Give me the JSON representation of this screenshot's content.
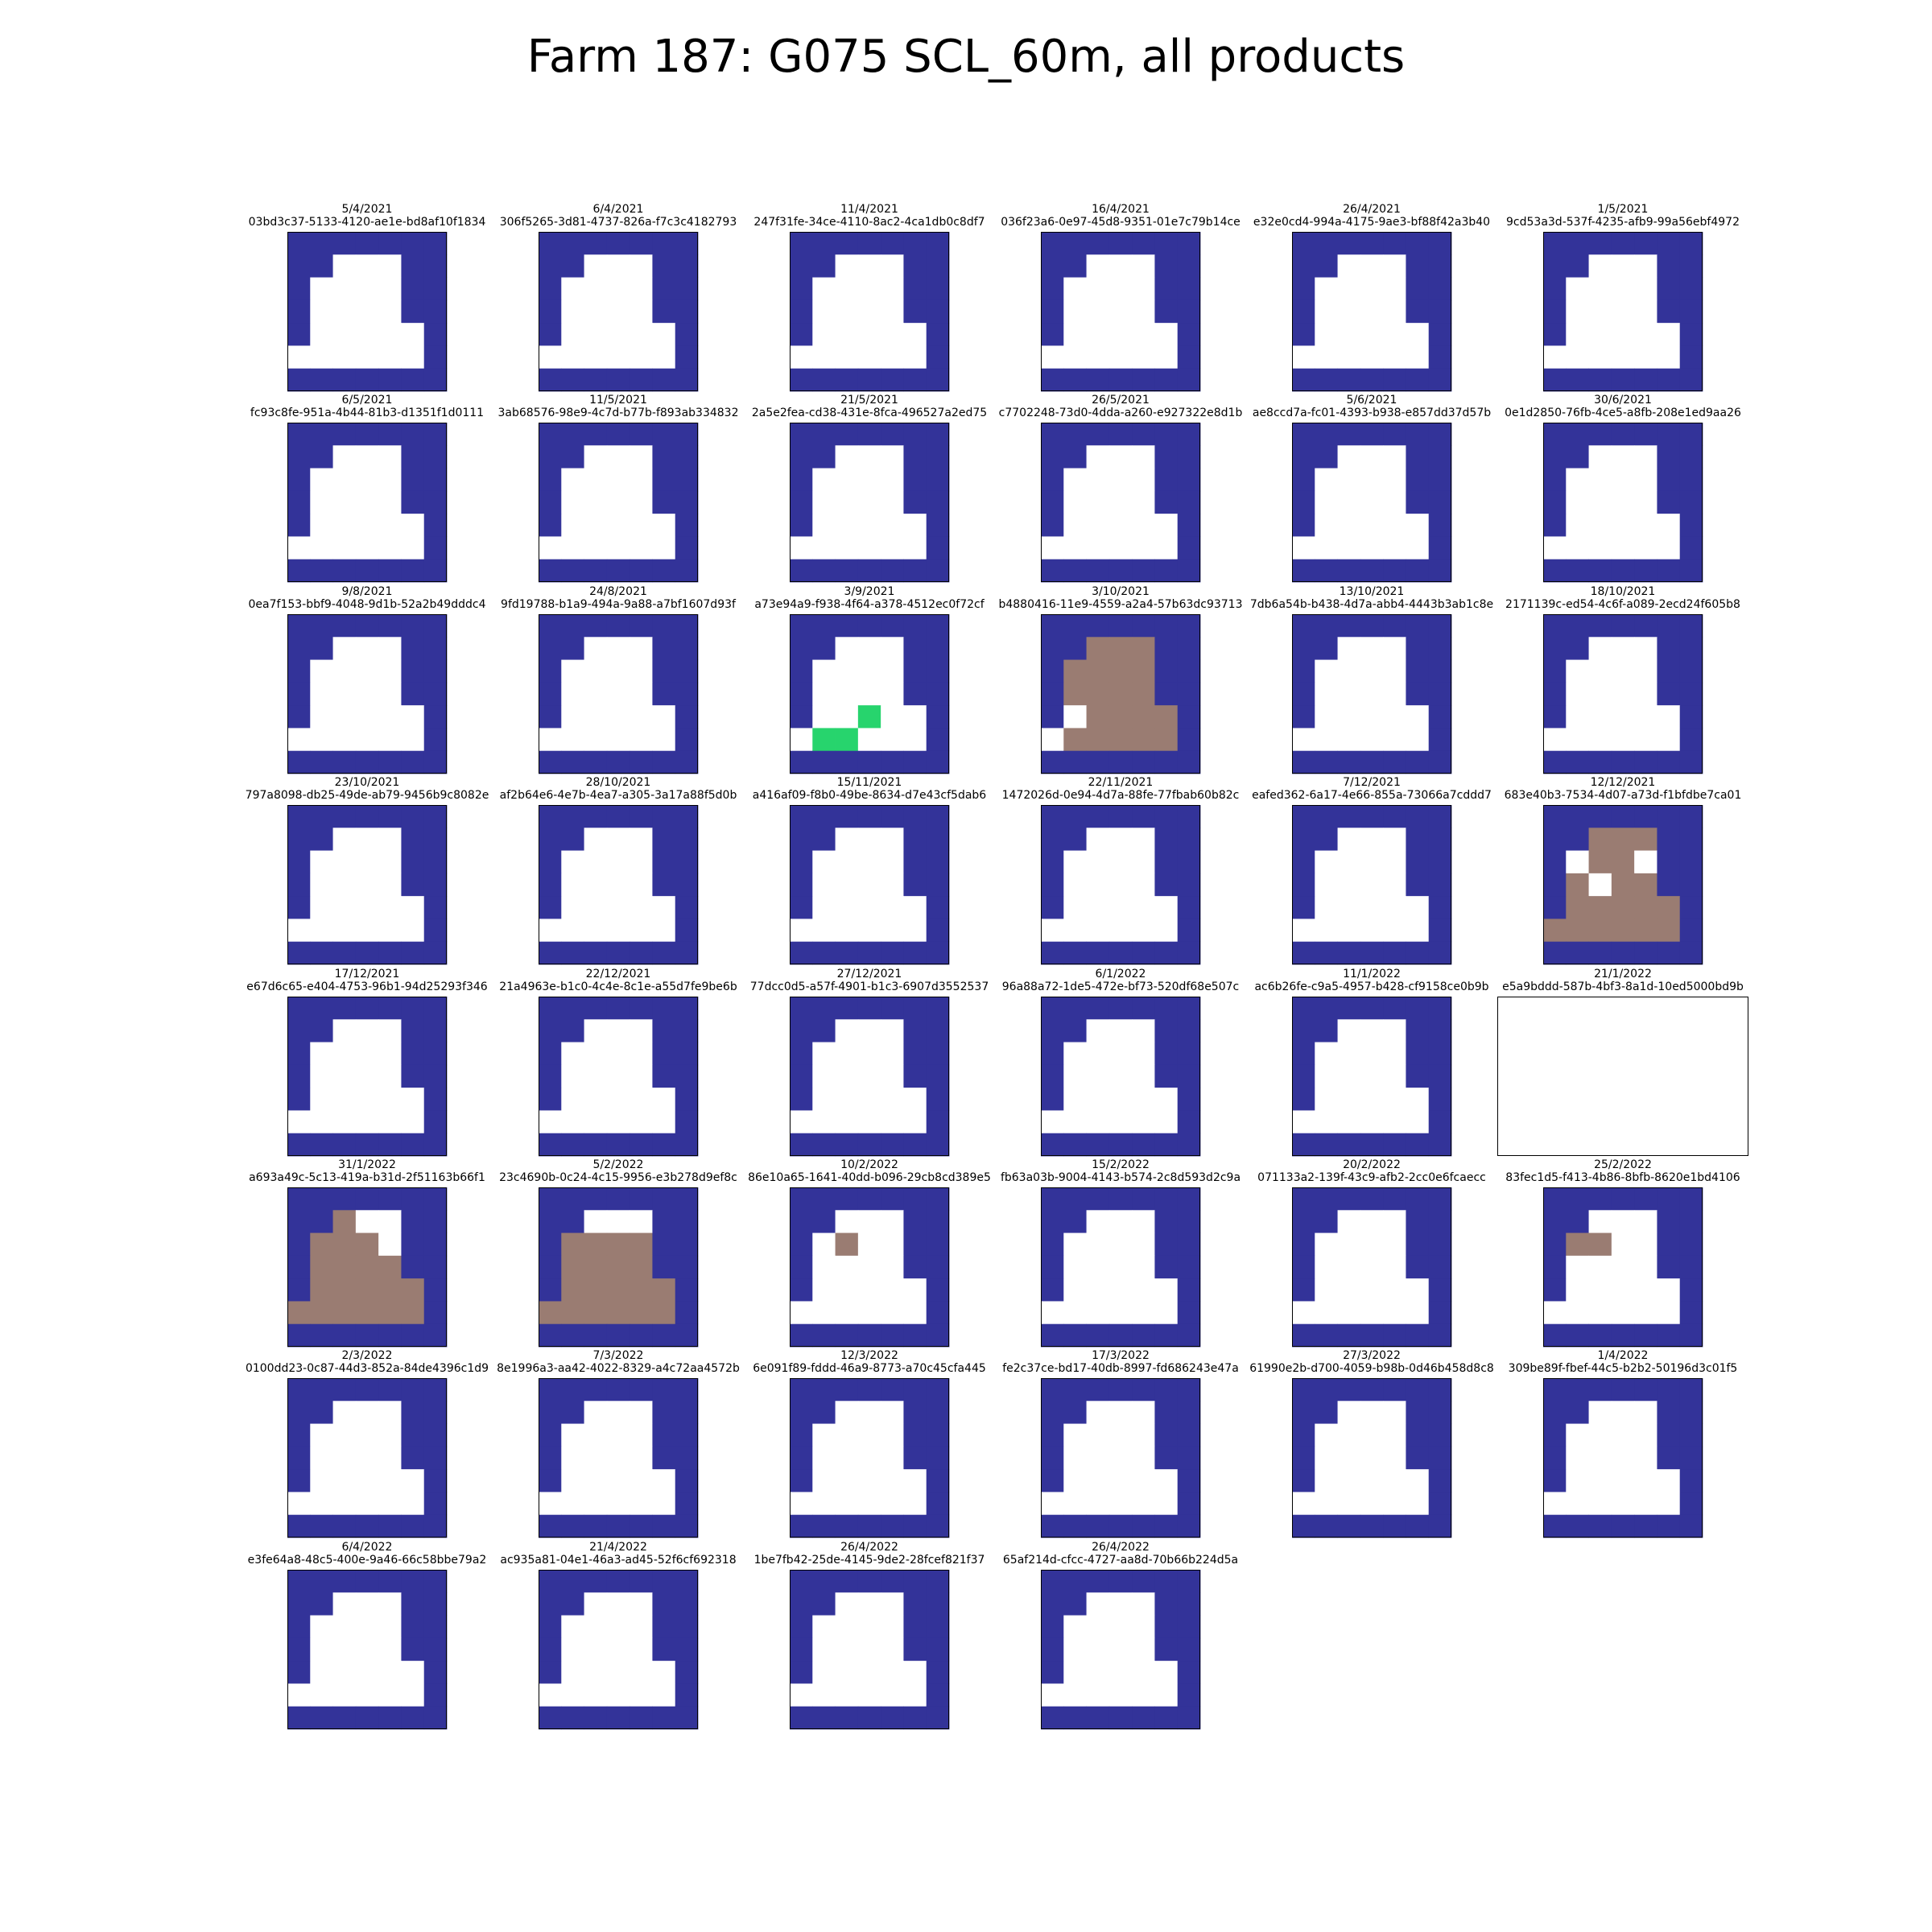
{
  "title": "Farm 187: G075 SCL_60m, all products",
  "colors": {
    "water": "#333399",
    "no_data": "#ffffff",
    "bare_soil": "#9a7c72",
    "vegetation": "#27d46d",
    "frame": "#000000"
  },
  "chart_data": {
    "type": "heatmap",
    "grid_rows": 7,
    "grid_cols": 7,
    "class_legend": {
      "W": "water (blue)",
      ".": "no data / masked (white)",
      "B": "bare soil (brown)",
      "V": "vegetation (green)"
    },
    "base_mask": [
      "WWWWWWW",
      "WW...WW",
      "W....WW",
      "W....WW",
      "W.....W",
      "......W",
      "WWWWWWW"
    ],
    "panels": [
      {
        "date": "5/4/2021",
        "product_id": "03bd3c37-5133-4120-ae1e-bd8af10f1834"
      },
      {
        "date": "6/4/2021",
        "product_id": "306f5265-3d81-4737-826a-f7c3c4182793"
      },
      {
        "date": "11/4/2021",
        "product_id": "247f31fe-34ce-4110-8ac2-4ca1db0c8df7"
      },
      {
        "date": "16/4/2021",
        "product_id": "036f23a6-0e97-45d8-9351-01e7c79b14ce"
      },
      {
        "date": "26/4/2021",
        "product_id": "e32e0cd4-994a-4175-9ae3-bf88f42a3b40"
      },
      {
        "date": "1/5/2021",
        "product_id": "9cd53a3d-537f-4235-afb9-99a56ebf4972"
      },
      {
        "date": "6/5/2021",
        "product_id": "fc93c8fe-951a-4b44-81b3-d1351f1d0111"
      },
      {
        "date": "11/5/2021",
        "product_id": "3ab68576-98e9-4c7d-b77b-f893ab334832"
      },
      {
        "date": "21/5/2021",
        "product_id": "2a5e2fea-cd38-431e-8fca-496527a2ed75"
      },
      {
        "date": "26/5/2021",
        "product_id": "c7702248-73d0-4dda-a260-e927322e8d1b"
      },
      {
        "date": "5/6/2021",
        "product_id": "ae8ccd7a-fc01-4393-b938-e857dd37d57b"
      },
      {
        "date": "30/6/2021",
        "product_id": "0e1d2850-76fb-4ce5-a8fb-208e1ed9aa26"
      },
      {
        "date": "9/8/2021",
        "product_id": "0ea7f153-bbf9-4048-9d1b-52a2b49dddc4"
      },
      {
        "date": "24/8/2021",
        "product_id": "9fd19788-b1a9-494a-9a88-a7bf1607d93f"
      },
      {
        "date": "3/9/2021",
        "product_id": "a73e94a9-f938-4f64-a378-4512ec0f72cf",
        "grid": [
          "WWWWWWW",
          "WW...WW",
          "W....WW",
          "W....WW",
          "W..V..W",
          ".VV...W",
          "WWWWWWW"
        ]
      },
      {
        "date": "3/10/2021",
        "product_id": "b4880416-11e9-4559-a2a4-57b63dc93713",
        "grid": [
          "WWWWWWW",
          "WWBBBWW",
          "WBBBBWW",
          "WBBBBWW",
          "W.BBBBW",
          ".BBBBBW",
          "WWWWWWW"
        ]
      },
      {
        "date": "13/10/2021",
        "product_id": "7db6a54b-b438-4d7a-abb4-4443b3ab1c8e"
      },
      {
        "date": "18/10/2021",
        "product_id": "2171139c-ed54-4c6f-a089-2ecd24f605b8"
      },
      {
        "date": "23/10/2021",
        "product_id": "797a8098-db25-49de-ab79-9456b9c8082e"
      },
      {
        "date": "28/10/2021",
        "product_id": "af2b64e6-4e7b-4ea7-a305-3a17a88f5d0b"
      },
      {
        "date": "15/11/2021",
        "product_id": "a416af09-f8b0-49be-8634-d7e43cf5dab6"
      },
      {
        "date": "22/11/2021",
        "product_id": "1472026d-0e94-4d7a-88fe-77fbab60b82c"
      },
      {
        "date": "7/12/2021",
        "product_id": "eafed362-6a17-4e66-855a-73066a7cddd7"
      },
      {
        "date": "12/12/2021",
        "product_id": "683e40b3-7534-4d07-a73d-f1bfdbe7ca01",
        "grid": [
          "WWWWWWW",
          "WWBBBWW",
          "W.BB.WW",
          "WB.BBWW",
          "WBBBBBW",
          "BBBBBBW",
          "WWWWWWW"
        ]
      },
      {
        "date": "17/12/2021",
        "product_id": "e67d6c65-e404-4753-96b1-94d25293f346"
      },
      {
        "date": "22/12/2021",
        "product_id": "21a4963e-b1c0-4c4e-8c1e-a55d7fe9be6b"
      },
      {
        "date": "27/12/2021",
        "product_id": "77dcc0d5-a57f-4901-b1c3-6907d3552537"
      },
      {
        "date": "6/1/2022",
        "product_id": "96a88a72-1de5-472e-bf73-520df68e507c"
      },
      {
        "date": "11/1/2022",
        "product_id": "ac6b26fe-c9a5-4957-b428-cf9158ce0b9b"
      },
      {
        "date": "21/1/2022",
        "product_id": "e5a9bddd-587b-4bf3-8a1d-10ed5000bd9b",
        "empty": true
      },
      {
        "date": "31/1/2022",
        "product_id": "a693a49c-5c13-419a-b31d-2f51163b66f1",
        "grid": [
          "WWWWWWW",
          "WWB..WW",
          "WBBB.WW",
          "WBBBBWW",
          "WBBBBBW",
          "BBBBBBW",
          "WWWWWWW"
        ]
      },
      {
        "date": "5/2/2022",
        "product_id": "23c4690b-0c24-4c15-9956-e3b278d9ef8c",
        "grid": [
          "WWWWWWW",
          "WW...WW",
          "WBBBBWW",
          "WBBBBWW",
          "WBBBBBW",
          "BBBBBBW",
          "WWWWWWW"
        ]
      },
      {
        "date": "10/2/2022",
        "product_id": "86e10a65-1641-40dd-b096-29cb8cd389e5",
        "grid": [
          "WWWWWWW",
          "WW...WW",
          "W.B..WW",
          "W....WW",
          "W.....W",
          "......W",
          "WWWWWWW"
        ]
      },
      {
        "date": "15/2/2022",
        "product_id": "fb63a03b-9004-4143-b574-2c8d593d2c9a"
      },
      {
        "date": "20/2/2022",
        "product_id": "071133a2-139f-43c9-afb2-2cc0e6fcaecc"
      },
      {
        "date": "25/2/2022",
        "product_id": "83fec1d5-f413-4b86-8bfb-8620e1bd4106",
        "grid": [
          "WWWWWWW",
          "WW...WW",
          "WBB..WW",
          "W....WW",
          "W.....W",
          "......W",
          "WWWWWWW"
        ]
      },
      {
        "date": "2/3/2022",
        "product_id": "0100dd23-0c87-44d3-852a-84de4396c1d9"
      },
      {
        "date": "7/3/2022",
        "product_id": "8e1996a3-aa42-4022-8329-a4c72aa4572b"
      },
      {
        "date": "12/3/2022",
        "product_id": "6e091f89-fddd-46a9-8773-a70c45cfa445"
      },
      {
        "date": "17/3/2022",
        "product_id": "fe2c37ce-bd17-40db-8997-fd686243e47a"
      },
      {
        "date": "27/3/2022",
        "product_id": "61990e2b-d700-4059-b98b-0d46b458d8c8"
      },
      {
        "date": "1/4/2022",
        "product_id": "309be89f-fbef-44c5-b2b2-50196d3c01f5"
      },
      {
        "date": "6/4/2022",
        "product_id": "e3fe64a8-48c5-400e-9a46-66c58bbe79a2"
      },
      {
        "date": "21/4/2022",
        "product_id": "ac935a81-04e1-46a3-ad45-52f6cf692318"
      },
      {
        "date": "26/4/2022",
        "product_id": "1be7fb42-25de-4145-9de2-28fcef821f37"
      },
      {
        "date": "26/4/2022",
        "product_id": "65af214d-cfcc-4727-aa8d-70b66b224d5a"
      }
    ]
  }
}
